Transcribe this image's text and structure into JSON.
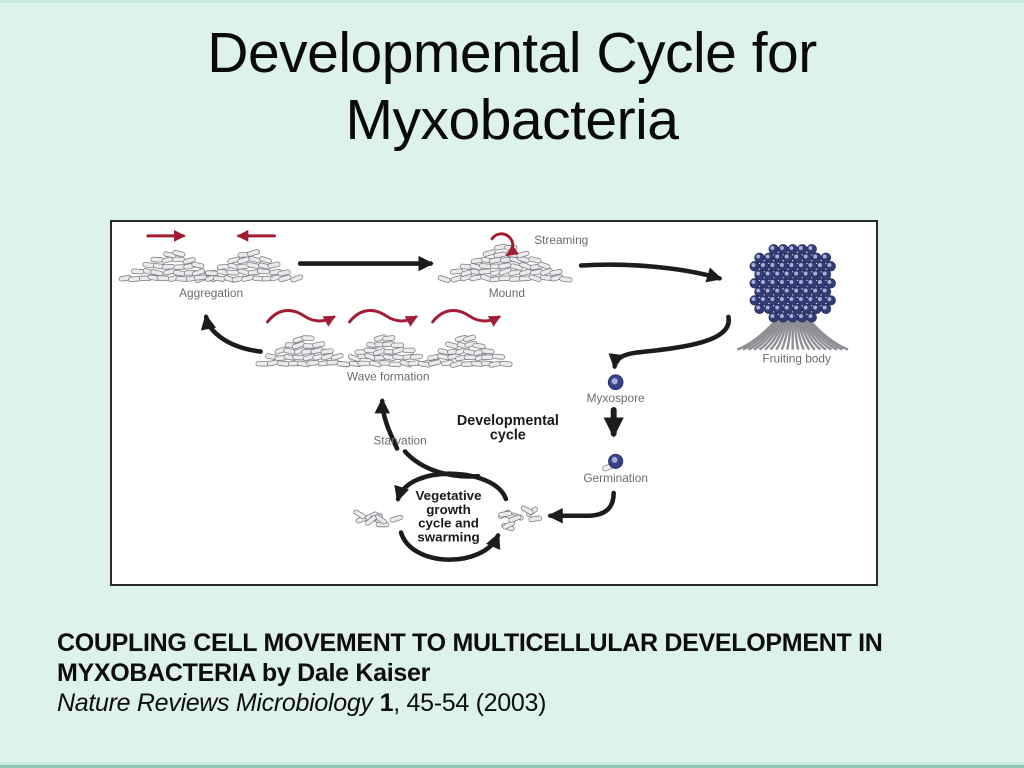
{
  "slide": {
    "title": "Developmental Cycle for Myxobacteria",
    "background_color": "#def2ec",
    "edge_color": "#8cc6b5"
  },
  "figure": {
    "labels": {
      "aggregation": "Aggregation",
      "streaming": "Streaming",
      "mound": "Mound",
      "fruiting_body": "Fruiting body",
      "wave_formation": "Wave formation",
      "starvation": "Starvation",
      "myxospore": "Myxospore",
      "germination": "Germination"
    },
    "developmental_cycle": {
      "line1": "Developmental",
      "line2": "cycle"
    },
    "vegetative_cycle": {
      "line1": "Vegetative",
      "line2": "growth",
      "line3": "cycle and",
      "line4": "swarming"
    },
    "flow_edges": [
      [
        "Aggregation",
        "Mound"
      ],
      [
        "Mound",
        "Fruiting body"
      ],
      [
        "Fruiting body",
        "Myxospore"
      ],
      [
        "Myxospore",
        "Germination"
      ],
      [
        "Germination",
        "Vegetative growth cycle and swarming"
      ],
      [
        "Starvation",
        "Vegetative growth cycle and swarming"
      ],
      [
        "Starvation",
        "Wave formation"
      ],
      [
        "Wave formation",
        "Aggregation"
      ]
    ],
    "colors": {
      "arrow_black": "#1c1c1c",
      "arrow_red": "#a21c34",
      "spore_navy": "#333b76",
      "cell_gray": "#ebebed",
      "panel_border": "#2b2b2b",
      "label_gray": "#6c6c70"
    }
  },
  "citation": {
    "title_line1": "COUPLING CELL MOVEMENT TO MULTICELLULAR DEVELOPMENT IN",
    "title_line2": "MYXOBACTERIA by Dale Kaiser",
    "journal": "Nature Reviews Microbiology",
    "volume": "1",
    "pages": ", 45-54 (2003)"
  }
}
